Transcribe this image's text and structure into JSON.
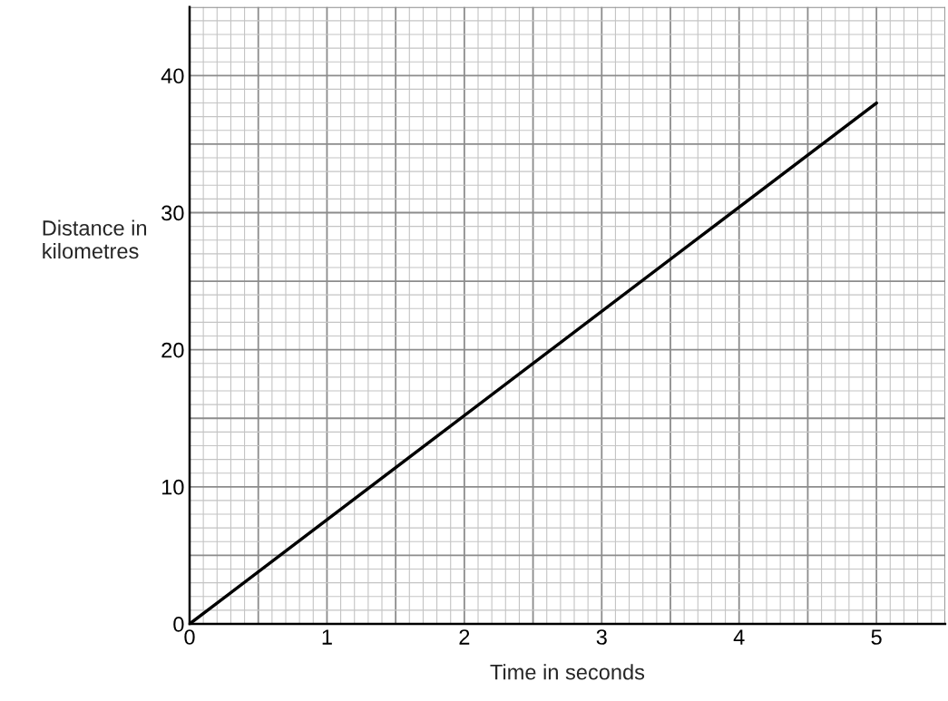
{
  "chart_data": {
    "type": "line",
    "xlabel": "Time in seconds",
    "ylabel": "Distance in\nkilometres",
    "x": [
      0,
      5
    ],
    "series": [
      {
        "color": "#000000",
        "values": [
          0,
          38
        ]
      }
    ],
    "xlim": [
      0,
      5.5
    ],
    "ylim": [
      0,
      45
    ],
    "xticks": [
      0,
      {
        "value": 0.1,
        "label": null
      },
      {
        "value": 0.2,
        "label": null
      },
      {
        "value": 0.3,
        "label": null
      },
      {
        "value": 0.4,
        "label": null
      },
      {
        "value": 0.5,
        "label": null
      },
      {
        "value": 0.6,
        "label": null
      },
      {
        "value": 0.7,
        "label": null
      },
      {
        "value": 0.8,
        "label": null
      },
      {
        "value": 0.9,
        "label": null
      },
      1,
      {
        "value": 1.1,
        "label": null
      },
      {
        "value": 1.2,
        "label": null
      },
      {
        "value": 1.3,
        "label": null
      },
      {
        "value": 1.4,
        "label": null
      },
      {
        "value": 1.5,
        "label": null
      },
      {
        "value": 1.6,
        "label": null
      },
      {
        "value": 1.7,
        "label": null
      },
      {
        "value": 1.8,
        "label": null
      },
      {
        "value": 1.9,
        "label": null
      },
      2,
      {
        "value": 2.1,
        "label": null
      },
      {
        "value": 2.2,
        "label": null
      },
      {
        "value": 2.3,
        "label": null
      },
      {
        "value": 2.4,
        "label": null
      },
      {
        "value": 2.5,
        "label": null
      },
      {
        "value": 2.6,
        "label": null
      },
      {
        "value": 2.7,
        "label": null
      },
      {
        "value": 2.8,
        "label": null
      },
      {
        "value": 2.9,
        "label": null
      },
      3,
      {
        "value": 3.1,
        "label": null
      },
      {
        "value": 3.2,
        "label": null
      },
      {
        "value": 3.3,
        "label": null
      },
      {
        "value": 3.4,
        "label": null
      },
      {
        "value": 3.5,
        "label": null
      },
      {
        "value": 3.6,
        "label": null
      },
      {
        "value": 3.7,
        "label": null
      },
      {
        "value": 3.8,
        "label": null
      },
      {
        "value": 3.9,
        "label": null
      },
      4,
      {
        "value": 4.1,
        "label": null
      },
      {
        "value": 4.2,
        "label": null
      },
      {
        "value": 4.3,
        "label": null
      },
      {
        "value": 4.4,
        "label": null
      },
      {
        "value": 4.5,
        "label": null
      },
      {
        "value": 4.6,
        "label": null
      },
      {
        "value": 4.7,
        "label": null
      },
      {
        "value": 4.8,
        "label": null
      },
      {
        "value": 4.9,
        "label": null
      },
      5,
      {
        "value": 5.1,
        "label": null
      },
      {
        "value": 5.2,
        "label": null
      },
      {
        "value": 5.3,
        "label": null
      },
      {
        "value": 5.4,
        "label": null
      },
      {
        "value": 5.5,
        "label": null
      }
    ],
    "yticks": [
      0,
      {
        "value": 1,
        "label": null
      },
      {
        "value": 2,
        "label": null
      },
      {
        "value": 3,
        "label": null
      },
      {
        "value": 4,
        "label": null
      },
      {
        "value": 5,
        "label": null
      },
      {
        "value": 6,
        "label": null
      },
      {
        "value": 7,
        "label": null
      },
      {
        "value": 8,
        "label": null
      },
      {
        "value": 9,
        "label": null
      },
      10,
      {
        "value": 11,
        "label": null
      },
      {
        "value": 12,
        "label": null
      },
      {
        "value": 13,
        "label": null
      },
      {
        "value": 14,
        "label": null
      },
      {
        "value": 15,
        "label": null
      },
      {
        "value": 16,
        "label": null
      },
      {
        "value": 17,
        "label": null
      },
      {
        "value": 18,
        "label": null
      },
      {
        "value": 19,
        "label": null
      },
      20,
      {
        "value": 21,
        "label": null
      },
      {
        "value": 22,
        "label": null
      },
      {
        "value": 23,
        "label": null
      },
      {
        "value": 24,
        "label": null
      },
      {
        "value": 25,
        "label": null
      },
      {
        "value": 26,
        "label": null
      },
      {
        "value": 27,
        "label": null
      },
      {
        "value": 28,
        "label": null
      },
      {
        "value": 29,
        "label": null
      },
      30,
      {
        "value": 31,
        "label": null
      },
      {
        "value": 32,
        "label": null
      },
      {
        "value": 33,
        "label": null
      },
      {
        "value": 34,
        "label": null
      },
      {
        "value": 35,
        "label": null
      },
      {
        "value": 36,
        "label": null
      },
      {
        "value": 37,
        "label": null
      },
      {
        "value": 38,
        "label": null
      },
      {
        "value": 39,
        "label": null
      },
      40,
      {
        "value": 41,
        "label": null
      },
      {
        "value": 42,
        "label": null
      },
      {
        "value": 43,
        "label": null
      },
      {
        "value": 44,
        "label": null
      },
      {
        "value": 45,
        "label": null
      }
    ],
    "grid": true,
    "marker": "none",
    "line_style": "solid"
  }
}
